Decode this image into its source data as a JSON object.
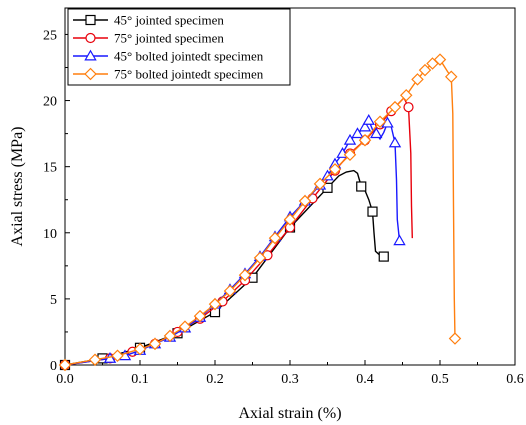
{
  "chart_data": {
    "type": "line",
    "xlabel": "Axial strain (%)",
    "ylabel": "Axial stress (MPa)",
    "xlim": [
      0.0,
      0.6
    ],
    "ylim": [
      0,
      27
    ],
    "xticks": [
      0.0,
      0.1,
      0.2,
      0.3,
      0.4,
      0.5,
      0.6
    ],
    "xtick_labels": [
      "0.0",
      "0.1",
      "0.2",
      "0.3",
      "0.4",
      "0.5",
      "0.6"
    ],
    "yticks": [
      0,
      5,
      10,
      15,
      20,
      25
    ],
    "ytick_labels": [
      "0",
      "5",
      "10",
      "15",
      "20",
      "25"
    ],
    "grid": false,
    "legend_position": "top-left",
    "series": [
      {
        "name": "45° jointed specimen",
        "color": "#000000",
        "marker": "square",
        "points": [
          [
            0.0,
            0.0
          ],
          [
            0.05,
            0.5
          ],
          [
            0.1,
            1.3
          ],
          [
            0.15,
            2.4
          ],
          [
            0.2,
            4.0
          ],
          [
            0.25,
            6.6
          ],
          [
            0.3,
            10.4
          ],
          [
            0.35,
            13.4
          ],
          [
            0.365,
            14.3
          ],
          [
            0.375,
            14.6
          ],
          [
            0.385,
            14.7
          ],
          [
            0.39,
            14.5
          ],
          [
            0.395,
            13.5
          ],
          [
            0.4,
            13.2
          ],
          [
            0.405,
            12.5
          ],
          [
            0.41,
            11.6
          ],
          [
            0.412,
            10.0
          ],
          [
            0.414,
            8.6
          ],
          [
            0.42,
            8.3
          ],
          [
            0.425,
            8.2
          ]
        ],
        "marker_points": [
          [
            0.0,
            0.0
          ],
          [
            0.05,
            0.5
          ],
          [
            0.1,
            1.3
          ],
          [
            0.15,
            2.4
          ],
          [
            0.2,
            4.0
          ],
          [
            0.25,
            6.6
          ],
          [
            0.3,
            10.4
          ],
          [
            0.35,
            13.4
          ],
          [
            0.395,
            13.5
          ],
          [
            0.41,
            11.6
          ],
          [
            0.425,
            8.2
          ]
        ]
      },
      {
        "name": "75° jointed specimen",
        "color": "#e8000b",
        "marker": "circle",
        "points": [
          [
            0.0,
            0.0
          ],
          [
            0.06,
            0.5
          ],
          [
            0.09,
            1.0
          ],
          [
            0.12,
            1.6
          ],
          [
            0.15,
            2.5
          ],
          [
            0.18,
            3.5
          ],
          [
            0.21,
            4.8
          ],
          [
            0.24,
            6.4
          ],
          [
            0.27,
            8.3
          ],
          [
            0.3,
            10.4
          ],
          [
            0.33,
            12.6
          ],
          [
            0.36,
            14.7
          ],
          [
            0.38,
            16.0
          ],
          [
            0.4,
            17.0
          ],
          [
            0.42,
            18.2
          ],
          [
            0.435,
            19.2
          ],
          [
            0.445,
            19.8
          ],
          [
            0.452,
            20.2
          ],
          [
            0.458,
            19.5
          ],
          [
            0.461,
            16.0
          ],
          [
            0.462,
            12.0
          ],
          [
            0.463,
            9.6
          ]
        ],
        "marker_points": [
          [
            0.0,
            0.0
          ],
          [
            0.06,
            0.5
          ],
          [
            0.09,
            1.0
          ],
          [
            0.12,
            1.6
          ],
          [
            0.15,
            2.5
          ],
          [
            0.18,
            3.5
          ],
          [
            0.21,
            4.8
          ],
          [
            0.24,
            6.4
          ],
          [
            0.27,
            8.3
          ],
          [
            0.3,
            10.4
          ],
          [
            0.33,
            12.6
          ],
          [
            0.36,
            14.7
          ],
          [
            0.38,
            16.0
          ],
          [
            0.4,
            17.0
          ],
          [
            0.42,
            18.2
          ],
          [
            0.435,
            19.2
          ],
          [
            0.458,
            19.5
          ]
        ]
      },
      {
        "name": "45° bolted jointedt specimen",
        "color": "#1919ff",
        "marker": "triangle",
        "points": [
          [
            0.0,
            0.0
          ],
          [
            0.06,
            0.5
          ],
          [
            0.08,
            0.7
          ],
          [
            0.1,
            1.1
          ],
          [
            0.12,
            1.6
          ],
          [
            0.14,
            2.1
          ],
          [
            0.16,
            2.8
          ],
          [
            0.18,
            3.6
          ],
          [
            0.2,
            4.6
          ],
          [
            0.22,
            5.7
          ],
          [
            0.24,
            6.9
          ],
          [
            0.26,
            8.2
          ],
          [
            0.28,
            9.7
          ],
          [
            0.3,
            11.2
          ],
          [
            0.32,
            12.4
          ],
          [
            0.34,
            13.6
          ],
          [
            0.35,
            14.3
          ],
          [
            0.36,
            15.2
          ],
          [
            0.37,
            16.0
          ],
          [
            0.38,
            17.0
          ],
          [
            0.39,
            17.5
          ],
          [
            0.4,
            18.0
          ],
          [
            0.405,
            18.5
          ],
          [
            0.41,
            17.8
          ],
          [
            0.415,
            17.5
          ],
          [
            0.42,
            17.1
          ],
          [
            0.425,
            17.6
          ],
          [
            0.43,
            18.3
          ],
          [
            0.435,
            18.0
          ],
          [
            0.44,
            16.8
          ],
          [
            0.442,
            14.0
          ],
          [
            0.443,
            11.0
          ],
          [
            0.446,
            9.4
          ]
        ],
        "marker_points": [
          [
            0.06,
            0.5
          ],
          [
            0.08,
            0.7
          ],
          [
            0.1,
            1.1
          ],
          [
            0.12,
            1.6
          ],
          [
            0.14,
            2.1
          ],
          [
            0.16,
            2.8
          ],
          [
            0.18,
            3.6
          ],
          [
            0.2,
            4.6
          ],
          [
            0.22,
            5.7
          ],
          [
            0.24,
            6.9
          ],
          [
            0.26,
            8.2
          ],
          [
            0.28,
            9.7
          ],
          [
            0.3,
            11.2
          ],
          [
            0.32,
            12.4
          ],
          [
            0.34,
            13.6
          ],
          [
            0.35,
            14.3
          ],
          [
            0.36,
            15.2
          ],
          [
            0.37,
            16.0
          ],
          [
            0.38,
            17.0
          ],
          [
            0.39,
            17.5
          ],
          [
            0.4,
            18.0
          ],
          [
            0.405,
            18.5
          ],
          [
            0.415,
            17.5
          ],
          [
            0.43,
            18.3
          ],
          [
            0.44,
            16.8
          ],
          [
            0.446,
            9.4
          ]
        ]
      },
      {
        "name": "75° bolted jointedt specimen",
        "color": "#ff7f0e",
        "marker": "diamond",
        "points": [
          [
            0.0,
            0.0
          ],
          [
            0.04,
            0.4
          ],
          [
            0.07,
            0.7
          ],
          [
            0.1,
            1.2
          ],
          [
            0.12,
            1.6
          ],
          [
            0.14,
            2.2
          ],
          [
            0.16,
            2.9
          ],
          [
            0.18,
            3.7
          ],
          [
            0.2,
            4.6
          ],
          [
            0.22,
            5.6
          ],
          [
            0.24,
            6.8
          ],
          [
            0.26,
            8.1
          ],
          [
            0.28,
            9.6
          ],
          [
            0.3,
            11.0
          ],
          [
            0.32,
            12.4
          ],
          [
            0.34,
            13.7
          ],
          [
            0.36,
            14.8
          ],
          [
            0.38,
            15.9
          ],
          [
            0.4,
            17.0
          ],
          [
            0.42,
            18.4
          ],
          [
            0.44,
            19.5
          ],
          [
            0.455,
            20.4
          ],
          [
            0.47,
            21.6
          ],
          [
            0.48,
            22.3
          ],
          [
            0.49,
            22.8
          ],
          [
            0.5,
            23.1
          ],
          [
            0.51,
            22.2
          ],
          [
            0.515,
            21.8
          ],
          [
            0.517,
            19.0
          ],
          [
            0.518,
            12.0
          ],
          [
            0.519,
            5.0
          ],
          [
            0.52,
            2.0
          ]
        ],
        "marker_points": [
          [
            0.0,
            0.0
          ],
          [
            0.04,
            0.4
          ],
          [
            0.07,
            0.7
          ],
          [
            0.1,
            1.2
          ],
          [
            0.12,
            1.6
          ],
          [
            0.14,
            2.2
          ],
          [
            0.16,
            2.9
          ],
          [
            0.18,
            3.7
          ],
          [
            0.2,
            4.6
          ],
          [
            0.22,
            5.6
          ],
          [
            0.24,
            6.8
          ],
          [
            0.26,
            8.1
          ],
          [
            0.28,
            9.6
          ],
          [
            0.3,
            11.0
          ],
          [
            0.32,
            12.4
          ],
          [
            0.34,
            13.7
          ],
          [
            0.36,
            14.8
          ],
          [
            0.38,
            15.9
          ],
          [
            0.4,
            17.0
          ],
          [
            0.42,
            18.4
          ],
          [
            0.44,
            19.5
          ],
          [
            0.455,
            20.4
          ],
          [
            0.47,
            21.6
          ],
          [
            0.48,
            22.3
          ],
          [
            0.49,
            22.8
          ],
          [
            0.5,
            23.1
          ],
          [
            0.515,
            21.8
          ],
          [
            0.52,
            2.0
          ]
        ]
      }
    ]
  }
}
